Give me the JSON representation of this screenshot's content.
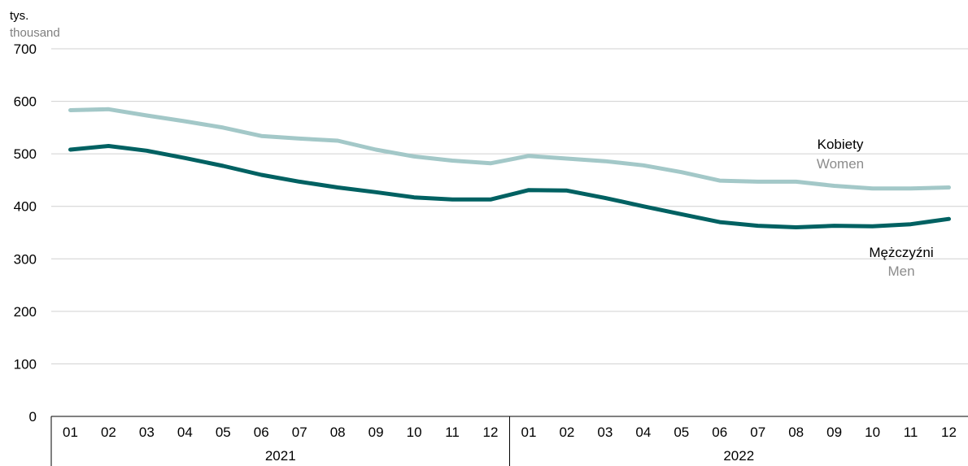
{
  "chart_data": {
    "type": "line",
    "unit_label": "tys.",
    "unit_label_en": "thousand",
    "ylim": [
      0,
      700
    ],
    "yticks": [
      0,
      100,
      200,
      300,
      400,
      500,
      600,
      700
    ],
    "grid": true,
    "years": [
      {
        "label": "2021",
        "months": [
          "01",
          "02",
          "03",
          "04",
          "05",
          "06",
          "07",
          "08",
          "09",
          "10",
          "11",
          "12"
        ]
      },
      {
        "label": "2022",
        "months": [
          "01",
          "02",
          "03",
          "04",
          "05",
          "06",
          "07",
          "08",
          "09",
          "10",
          "11",
          "12"
        ]
      }
    ],
    "series": [
      {
        "name": "Kobiety",
        "name_en": "Women",
        "color": "#a3c8c8",
        "values": [
          583,
          585,
          573,
          562,
          550,
          534,
          529,
          525,
          508,
          495,
          487,
          482,
          496,
          491,
          486,
          478,
          465,
          449,
          447,
          447,
          439,
          434,
          434,
          436
        ]
      },
      {
        "name": "Mężczyźni",
        "name_en": "Men",
        "color": "#006162",
        "values": [
          508,
          515,
          506,
          492,
          477,
          460,
          447,
          436,
          427,
          417,
          413,
          413,
          431,
          430,
          416,
          400,
          385,
          370,
          363,
          360,
          363,
          362,
          366,
          376
        ]
      }
    ]
  }
}
